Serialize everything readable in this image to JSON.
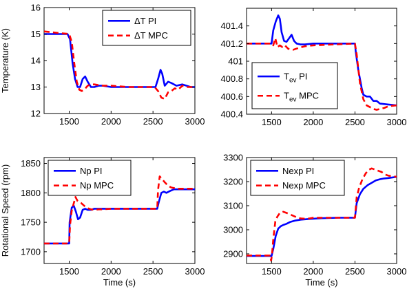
{
  "chart_data": [
    {
      "type": "line",
      "xlabel": "",
      "ylabel": "Temperature (K)",
      "xlim": [
        1200,
        3000
      ],
      "ylim": [
        12,
        16
      ],
      "xticks": [
        "1500",
        "2000",
        "2500",
        "3000"
      ],
      "yticks": [
        "12",
        "13",
        "14",
        "15",
        "16"
      ],
      "legend": "top-right",
      "series": [
        {
          "name": "ΔT PI",
          "color": "#0000ff",
          "dash": "solid",
          "x": [
            1200,
            1480,
            1510,
            1540,
            1570,
            1600,
            1630,
            1660,
            1690,
            1720,
            1760,
            1800,
            1850,
            1900,
            2000,
            2200,
            2400,
            2530,
            2560,
            2590,
            2610,
            2640,
            2680,
            2720,
            2780,
            2850,
            2950,
            3000
          ],
          "y": [
            15.0,
            15.0,
            14.8,
            13.9,
            13.3,
            13.0,
            13.0,
            13.3,
            13.4,
            13.2,
            13.0,
            13.0,
            13.05,
            13.05,
            13.0,
            13.0,
            13.0,
            13.0,
            13.3,
            13.65,
            13.5,
            13.05,
            13.2,
            13.15,
            13.05,
            13.1,
            13.0,
            13.0
          ]
        },
        {
          "name": "ΔT MPC",
          "color": "#ff0000",
          "dash": "dashed",
          "x": [
            1200,
            1500,
            1530,
            1560,
            1590,
            1620,
            1650,
            1680,
            1720,
            1760,
            1800,
            1900,
            2000,
            2200,
            2400,
            2500,
            2520,
            2560,
            2600,
            2640,
            2680,
            2720,
            2760,
            2800,
            2850,
            2900,
            3000
          ],
          "y": [
            15.1,
            15.0,
            14.7,
            13.9,
            13.2,
            12.9,
            12.85,
            12.9,
            13.05,
            13.1,
            13.1,
            13.05,
            13.05,
            13.0,
            13.0,
            13.0,
            13.0,
            12.85,
            12.6,
            12.55,
            12.8,
            12.85,
            12.95,
            12.9,
            13.05,
            13.0,
            13.0
          ]
        }
      ]
    },
    {
      "type": "line",
      "xlabel": "",
      "ylabel": "",
      "xlim": [
        1200,
        3000
      ],
      "ylim": [
        400.4,
        401.6
      ],
      "xticks": [
        "1500",
        "2000",
        "2500",
        "3000"
      ],
      "yticks": [
        "400.4",
        "400.6",
        "400.8",
        "401",
        "401.2",
        "401.4"
      ],
      "legend": "bottom-left",
      "series": [
        {
          "name": "T_ev PI",
          "color": "#0000ff",
          "dash": "solid",
          "x": [
            1200,
            1500,
            1520,
            1550,
            1580,
            1600,
            1620,
            1650,
            1680,
            1710,
            1740,
            1770,
            1800,
            1850,
            1900,
            2000,
            2500,
            2510,
            2540,
            2580,
            2600,
            2640,
            2680,
            2720,
            2760,
            2800,
            2900,
            3000
          ],
          "y": [
            401.2,
            401.2,
            401.35,
            401.45,
            401.52,
            401.48,
            401.33,
            401.23,
            401.22,
            401.26,
            401.3,
            401.23,
            401.2,
            401.19,
            401.19,
            401.2,
            401.2,
            401.1,
            400.9,
            400.7,
            400.62,
            400.6,
            400.6,
            400.55,
            400.55,
            400.52,
            400.51,
            400.5
          ]
        },
        {
          "name": "T_ev MPC",
          "color": "#ff0000",
          "dash": "dashed",
          "x": [
            1200,
            1500,
            1520,
            1545,
            1570,
            1600,
            1630,
            1660,
            1700,
            1760,
            1820,
            1900,
            2000,
            2500,
            2520,
            2560,
            2600,
            2640,
            2680,
            2720,
            2760,
            2800,
            2850,
            2900,
            3000
          ],
          "y": [
            401.2,
            401.2,
            401.18,
            401.26,
            401.16,
            401.18,
            401.16,
            401.18,
            401.14,
            401.13,
            401.15,
            401.17,
            401.18,
            401.2,
            401.08,
            400.75,
            400.57,
            400.5,
            400.48,
            400.46,
            400.45,
            400.46,
            400.47,
            400.49,
            400.5
          ]
        }
      ]
    },
    {
      "type": "line",
      "xlabel": "Time (s)",
      "ylabel": "Rotational Speed (rpm)",
      "xlim": [
        1200,
        3000
      ],
      "ylim": [
        1680,
        1860
      ],
      "xticks": [
        "1500",
        "2000",
        "2500",
        "3000"
      ],
      "yticks": [
        "1700",
        "1750",
        "1800",
        "1850"
      ],
      "legend": "top-left",
      "series": [
        {
          "name": "Np PI",
          "color": "#0000ff",
          "dash": "solid",
          "x": [
            1200,
            1500,
            1505,
            1530,
            1555,
            1580,
            1605,
            1630,
            1660,
            1690,
            1720,
            1760,
            1800,
            1850,
            2000,
            2200,
            2400,
            2550,
            2570,
            2600,
            2630,
            2660,
            2700,
            2750,
            2800,
            2900,
            3000
          ],
          "y": [
            1714,
            1714,
            1750,
            1775,
            1778,
            1768,
            1755,
            1758,
            1771,
            1773,
            1771,
            1771,
            1773,
            1773,
            1773,
            1773,
            1773,
            1773,
            1785,
            1800,
            1802,
            1800,
            1803,
            1806,
            1806,
            1806,
            1806
          ]
        },
        {
          "name": "Np MPC",
          "color": "#ff0000",
          "dash": "dashed",
          "x": [
            1200,
            1500,
            1510,
            1530,
            1550,
            1575,
            1600,
            1640,
            1680,
            1720,
            1760,
            1800,
            1850,
            1900,
            2000,
            2200,
            2400,
            2550,
            2560,
            2580,
            2600,
            2640,
            2680,
            2720,
            2760,
            2800,
            2900,
            3000
          ],
          "y": [
            1714,
            1714,
            1745,
            1770,
            1780,
            1793,
            1786,
            1783,
            1778,
            1774,
            1772,
            1771,
            1772,
            1772,
            1773,
            1773,
            1773,
            1773,
            1805,
            1828,
            1825,
            1818,
            1812,
            1809,
            1808,
            1807,
            1807,
            1807
          ]
        }
      ]
    },
    {
      "type": "line",
      "xlabel": "Time (s)",
      "ylabel": "",
      "xlim": [
        1200,
        3000
      ],
      "ylim": [
        2860,
        3300
      ],
      "xticks": [
        "1500",
        "2000",
        "2500",
        "3000"
      ],
      "yticks": [
        "2900",
        "3000",
        "3100",
        "3200",
        "3300"
      ],
      "legend": "top-left",
      "series": [
        {
          "name": "Nexp PI",
          "color": "#0000ff",
          "dash": "solid",
          "x": [
            1200,
            1500,
            1520,
            1550,
            1580,
            1610,
            1640,
            1680,
            1720,
            1780,
            1850,
            1950,
            2100,
            2300,
            2500,
            2520,
            2560,
            2600,
            2650,
            2700,
            2750,
            2800,
            2850,
            2900,
            3000
          ],
          "y": [
            2891,
            2891,
            2920,
            2975,
            3005,
            3015,
            3020,
            3025,
            3032,
            3038,
            3042,
            3045,
            3048,
            3050,
            3050,
            3110,
            3148,
            3170,
            3185,
            3195,
            3205,
            3210,
            3213,
            3215,
            3220
          ]
        },
        {
          "name": "Nexp MPC",
          "color": "#ff0000",
          "dash": "dashed",
          "x": [
            1200,
            1480,
            1495,
            1505,
            1520,
            1545,
            1570,
            1600,
            1640,
            1680,
            1720,
            1760,
            1800,
            1850,
            1900,
            1950,
            2000,
            2100,
            2300,
            2500,
            2520,
            2550,
            2590,
            2630,
            2670,
            2700,
            2740,
            2780,
            2820,
            2860,
            2900,
            3000
          ],
          "y": [
            2893,
            2893,
            2872,
            2895,
            2960,
            3035,
            3055,
            3070,
            3075,
            3070,
            3064,
            3058,
            3052,
            3047,
            3046,
            3047,
            3050,
            3050,
            3050,
            3050,
            3135,
            3175,
            3210,
            3235,
            3250,
            3255,
            3250,
            3245,
            3240,
            3230,
            3225,
            3220
          ]
        }
      ]
    }
  ]
}
